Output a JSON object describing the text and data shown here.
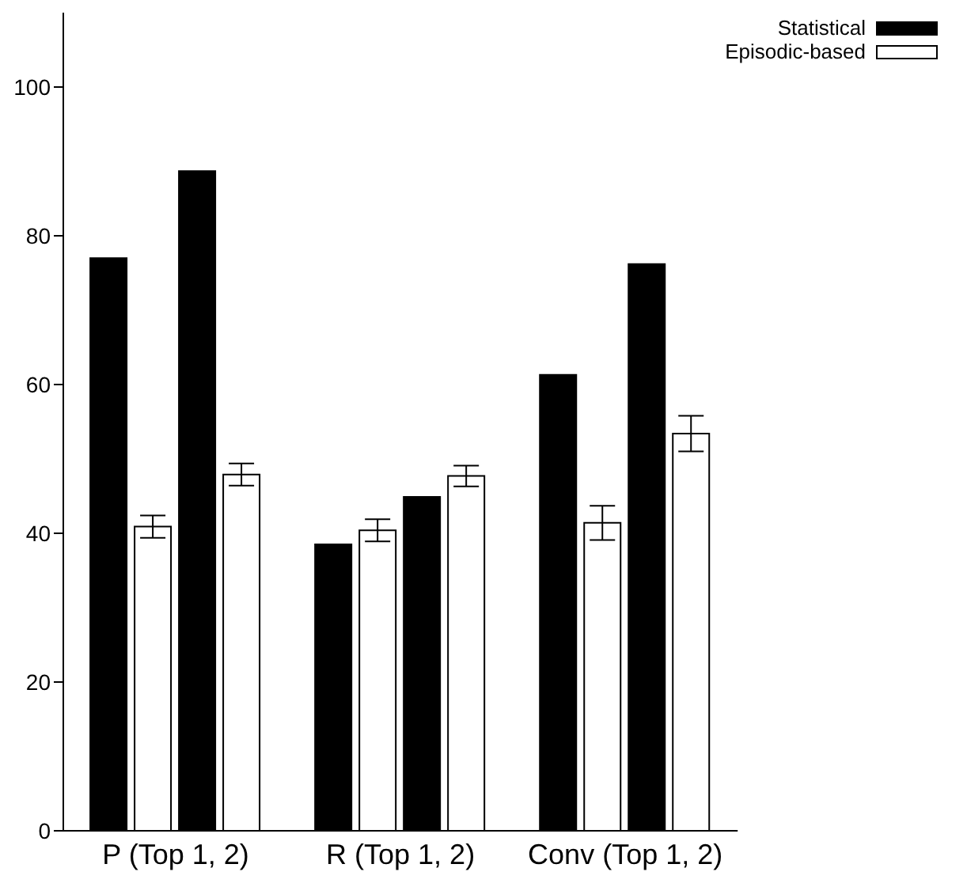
{
  "chart_data": {
    "type": "bar",
    "categories": [
      "P (Top 1, 2)",
      "R (Top 1, 2)",
      "Conv (Top 1, 2)"
    ],
    "series": [
      {
        "name": "Statistical",
        "color": "#000000",
        "values": [
          77.0,
          38.5,
          61.3
        ]
      },
      {
        "name": "Episodic-based",
        "color": "#ffffff",
        "values": [
          40.9,
          40.4,
          41.4
        ],
        "errors": [
          1.5,
          1.5,
          2.3
        ]
      },
      {
        "color": "#000000",
        "values": [
          88.7,
          44.9,
          76.2
        ]
      },
      {
        "color": "#ffffff",
        "values": [
          47.9,
          47.7,
          53.4
        ],
        "errors": [
          1.5,
          1.4,
          2.4
        ]
      }
    ],
    "ylim": [
      0,
      110
    ],
    "yticks": [
      0,
      20,
      40,
      60,
      80,
      100
    ],
    "legend": "top right",
    "grid": false
  }
}
